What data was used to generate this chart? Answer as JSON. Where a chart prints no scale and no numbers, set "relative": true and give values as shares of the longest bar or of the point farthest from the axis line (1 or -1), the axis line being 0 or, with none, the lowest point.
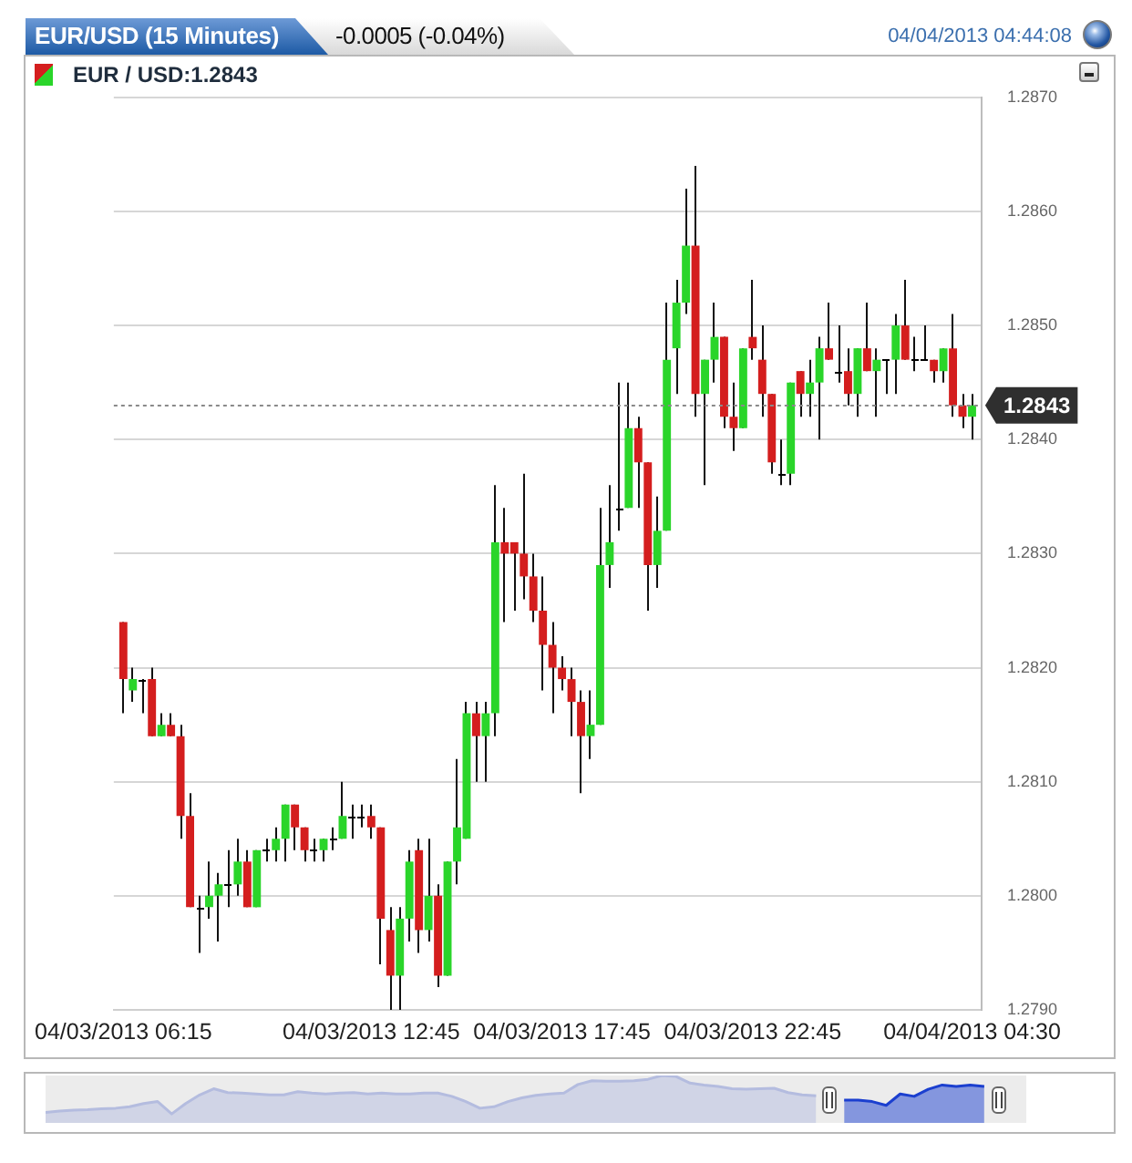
{
  "chart_data": [
    {
      "type": "candlestick",
      "title": "EUR/USD (15 Minutes)",
      "subtitle": "-0.0005 (-0.04%)",
      "annotations": [
        "04/04/2013 04:44:08"
      ],
      "x": [
        "2013-04-03T06:15",
        "2013-04-03T06:30",
        "2013-04-03T06:45",
        "2013-04-03T07:00",
        "2013-04-03T07:15",
        "2013-04-03T07:30",
        "2013-04-03T07:45",
        "2013-04-03T08:00",
        "2013-04-03T08:15",
        "2013-04-03T08:30",
        "2013-04-03T08:45",
        "2013-04-03T09:00",
        "2013-04-03T09:15",
        "2013-04-03T09:30",
        "2013-04-03T09:45",
        "2013-04-03T10:00",
        "2013-04-03T10:15",
        "2013-04-03T10:30",
        "2013-04-03T10:45",
        "2013-04-03T11:00",
        "2013-04-03T11:15",
        "2013-04-03T11:30",
        "2013-04-03T11:45",
        "2013-04-03T12:00",
        "2013-04-03T12:15",
        "2013-04-03T12:30",
        "2013-04-03T12:45",
        "2013-04-03T13:00",
        "2013-04-03T13:15",
        "2013-04-03T13:30",
        "2013-04-03T13:45",
        "2013-04-03T14:00",
        "2013-04-03T14:15",
        "2013-04-03T14:30",
        "2013-04-03T14:45",
        "2013-04-03T15:00",
        "2013-04-03T15:15",
        "2013-04-03T15:30",
        "2013-04-03T15:45",
        "2013-04-03T16:00",
        "2013-04-03T16:15",
        "2013-04-03T16:30",
        "2013-04-03T16:45",
        "2013-04-03T17:00",
        "2013-04-03T17:15",
        "2013-04-03T17:30",
        "2013-04-03T17:45",
        "2013-04-03T18:00",
        "2013-04-03T18:15",
        "2013-04-03T18:30",
        "2013-04-03T18:45",
        "2013-04-03T19:00",
        "2013-04-03T19:15",
        "2013-04-03T19:30",
        "2013-04-03T19:45",
        "2013-04-03T20:00",
        "2013-04-03T20:15",
        "2013-04-03T20:30",
        "2013-04-03T20:45",
        "2013-04-03T21:00",
        "2013-04-03T21:15",
        "2013-04-03T21:30",
        "2013-04-03T21:45",
        "2013-04-03T22:00",
        "2013-04-03T22:15",
        "2013-04-03T22:30",
        "2013-04-03T22:45",
        "2013-04-03T23:00",
        "2013-04-03T23:15",
        "2013-04-03T23:30",
        "2013-04-03T23:45",
        "2013-04-04T00:00",
        "2013-04-04T00:15",
        "2013-04-04T00:30",
        "2013-04-04T00:45",
        "2013-04-04T01:00",
        "2013-04-04T01:15",
        "2013-04-04T01:30",
        "2013-04-04T01:45",
        "2013-04-04T02:00",
        "2013-04-04T02:15",
        "2013-04-04T02:30",
        "2013-04-04T02:45",
        "2013-04-04T03:00",
        "2013-04-04T03:15",
        "2013-04-04T03:30",
        "2013-04-04T03:45",
        "2013-04-04T04:00",
        "2013-04-04T04:15",
        "2013-04-04T04:30"
      ],
      "series": [
        {
          "name": "EUR / USD:1.2843",
          "ohlc": [
            [
              1.2824,
              1.2824,
              1.2816,
              1.2819
            ],
            [
              1.2818,
              1.282,
              1.2817,
              1.2819
            ],
            [
              1.2819,
              1.2819,
              1.2816,
              1.2819
            ],
            [
              1.2819,
              1.282,
              1.2814,
              1.2814
            ],
            [
              1.2814,
              1.2816,
              1.2814,
              1.2815
            ],
            [
              1.2815,
              1.2816,
              1.2814,
              1.2814
            ],
            [
              1.2814,
              1.2815,
              1.2805,
              1.2807
            ],
            [
              1.2807,
              1.2809,
              1.2799,
              1.2799
            ],
            [
              1.2799,
              1.28,
              1.2795,
              1.2799
            ],
            [
              1.2799,
              1.2803,
              1.2798,
              1.28
            ],
            [
              1.28,
              1.2802,
              1.2796,
              1.2801
            ],
            [
              1.2801,
              1.2804,
              1.2799,
              1.2801
            ],
            [
              1.2801,
              1.2805,
              1.28,
              1.2803
            ],
            [
              1.2803,
              1.2804,
              1.2799,
              1.2799
            ],
            [
              1.2799,
              1.2804,
              1.2799,
              1.2804
            ],
            [
              1.2804,
              1.2805,
              1.2803,
              1.2804
            ],
            [
              1.2804,
              1.2806,
              1.2803,
              1.2805
            ],
            [
              1.2805,
              1.2808,
              1.2803,
              1.2808
            ],
            [
              1.2808,
              1.2808,
              1.2804,
              1.2806
            ],
            [
              1.2806,
              1.2806,
              1.2803,
              1.2804
            ],
            [
              1.2804,
              1.2805,
              1.2803,
              1.2804
            ],
            [
              1.2804,
              1.2805,
              1.2803,
              1.2805
            ],
            [
              1.2805,
              1.2806,
              1.2804,
              1.2805
            ],
            [
              1.2805,
              1.281,
              1.2805,
              1.2807
            ],
            [
              1.2807,
              1.2808,
              1.2805,
              1.2807
            ],
            [
              1.2807,
              1.2808,
              1.2806,
              1.2807
            ],
            [
              1.2807,
              1.2808,
              1.2805,
              1.2806
            ],
            [
              1.2806,
              1.2806,
              1.2794,
              1.2798
            ],
            [
              1.2797,
              1.2799,
              1.279,
              1.2793
            ],
            [
              1.2793,
              1.2799,
              1.279,
              1.2798
            ],
            [
              1.2798,
              1.2804,
              1.2796,
              1.2803
            ],
            [
              1.2804,
              1.2805,
              1.2795,
              1.2797
            ],
            [
              1.2797,
              1.2805,
              1.2796,
              1.28
            ],
            [
              1.28,
              1.2801,
              1.2792,
              1.2793
            ],
            [
              1.2793,
              1.2803,
              1.2793,
              1.2803
            ],
            [
              1.2803,
              1.2812,
              1.2801,
              1.2806
            ],
            [
              1.2805,
              1.2817,
              1.2805,
              1.2816
            ],
            [
              1.2816,
              1.2817,
              1.281,
              1.2814
            ],
            [
              1.2814,
              1.2817,
              1.281,
              1.2816
            ],
            [
              1.2816,
              1.2836,
              1.2814,
              1.2831
            ],
            [
              1.2831,
              1.2834,
              1.2824,
              1.283
            ],
            [
              1.2831,
              1.2831,
              1.2825,
              1.283
            ],
            [
              1.283,
              1.2837,
              1.2826,
              1.2828
            ],
            [
              1.2828,
              1.283,
              1.2824,
              1.2825
            ],
            [
              1.2825,
              1.2828,
              1.2818,
              1.2822
            ],
            [
              1.2822,
              1.2824,
              1.2816,
              1.282
            ],
            [
              1.282,
              1.2821,
              1.2818,
              1.2819
            ],
            [
              1.2819,
              1.282,
              1.2814,
              1.2817
            ],
            [
              1.2817,
              1.2818,
              1.2809,
              1.2814
            ],
            [
              1.2814,
              1.2818,
              1.2812,
              1.2815
            ],
            [
              1.2815,
              1.2834,
              1.2815,
              1.2829
            ],
            [
              1.2829,
              1.2836,
              1.2827,
              1.2831
            ],
            [
              1.2834,
              1.2845,
              1.2832,
              1.2834
            ],
            [
              1.2834,
              1.2845,
              1.2834,
              1.2841
            ],
            [
              1.2841,
              1.2842,
              1.2834,
              1.2838
            ],
            [
              1.2838,
              1.2838,
              1.2825,
              1.2829
            ],
            [
              1.2829,
              1.2835,
              1.2827,
              1.2832
            ],
            [
              1.2832,
              1.2852,
              1.2832,
              1.2847
            ],
            [
              1.2848,
              1.2854,
              1.2844,
              1.2852
            ],
            [
              1.2852,
              1.2862,
              1.2851,
              1.2857
            ],
            [
              1.2857,
              1.2864,
              1.2842,
              1.2844
            ],
            [
              1.2844,
              1.2847,
              1.2836,
              1.2847
            ],
            [
              1.2847,
              1.2852,
              1.2845,
              1.2849
            ],
            [
              1.2849,
              1.2849,
              1.2841,
              1.2842
            ],
            [
              1.2842,
              1.2845,
              1.2839,
              1.2841
            ],
            [
              1.2841,
              1.2848,
              1.2841,
              1.2848
            ],
            [
              1.2849,
              1.2854,
              1.2847,
              1.2848
            ],
            [
              1.2847,
              1.285,
              1.2842,
              1.2844
            ],
            [
              1.2844,
              1.2844,
              1.2837,
              1.2838
            ],
            [
              1.2837,
              1.284,
              1.2836,
              1.2837
            ],
            [
              1.2837,
              1.2845,
              1.2836,
              1.2845
            ],
            [
              1.2846,
              1.2846,
              1.2842,
              1.2844
            ],
            [
              1.2844,
              1.2847,
              1.2842,
              1.2845
            ],
            [
              1.2845,
              1.2849,
              1.284,
              1.2848
            ],
            [
              1.2848,
              1.2852,
              1.2847,
              1.2847
            ],
            [
              1.2846,
              1.285,
              1.2845,
              1.2846
            ],
            [
              1.2846,
              1.2848,
              1.2843,
              1.2844
            ],
            [
              1.2844,
              1.2848,
              1.2842,
              1.2848
            ],
            [
              1.2848,
              1.2852,
              1.2846,
              1.2846
            ],
            [
              1.2846,
              1.2848,
              1.2842,
              1.2847
            ],
            [
              1.2847,
              1.2847,
              1.2844,
              1.2847
            ],
            [
              1.2847,
              1.2851,
              1.2844,
              1.285
            ],
            [
              1.285,
              1.2854,
              1.2847,
              1.2847
            ],
            [
              1.2847,
              1.2849,
              1.2846,
              1.2847
            ],
            [
              1.2847,
              1.285,
              1.2847,
              1.2847
            ],
            [
              1.2847,
              1.2847,
              1.2845,
              1.2846
            ],
            [
              1.2846,
              1.2848,
              1.2845,
              1.2848
            ],
            [
              1.2848,
              1.2851,
              1.2842,
              1.2843
            ],
            [
              1.2843,
              1.2844,
              1.2841,
              1.2842
            ],
            [
              1.2842,
              1.2844,
              1.284,
              1.2843
            ]
          ],
          "colors": [
            "#d41e1e",
            "#2ad52a",
            "#000000",
            "#d41e1e",
            "#2ad52a",
            "#d41e1e",
            "#d41e1e",
            "#d41e1e",
            "#000000",
            "#2ad52a",
            "#2ad52a",
            "#000000",
            "#2ad52a",
            "#d41e1e",
            "#2ad52a",
            "#000000",
            "#2ad52a",
            "#2ad52a",
            "#d41e1e",
            "#d41e1e",
            "#000000",
            "#2ad52a",
            "#000000",
            "#2ad52a",
            "#000000",
            "#000000",
            "#d41e1e",
            "#d41e1e",
            "#d41e1e",
            "#2ad52a",
            "#2ad52a",
            "#d41e1e",
            "#2ad52a",
            "#d41e1e",
            "#2ad52a",
            "#2ad52a",
            "#2ad52a",
            "#d41e1e",
            "#2ad52a",
            "#2ad52a",
            "#d41e1e",
            "#d41e1e",
            "#d41e1e",
            "#d41e1e",
            "#d41e1e",
            "#d41e1e",
            "#d41e1e",
            "#d41e1e",
            "#d41e1e",
            "#2ad52a",
            "#2ad52a",
            "#2ad52a",
            "#000000",
            "#2ad52a",
            "#d41e1e",
            "#d41e1e",
            "#2ad52a",
            "#2ad52a",
            "#2ad52a",
            "#2ad52a",
            "#d41e1e",
            "#2ad52a",
            "#2ad52a",
            "#d41e1e",
            "#d41e1e",
            "#2ad52a",
            "#d41e1e",
            "#d41e1e",
            "#d41e1e",
            "#000000",
            "#2ad52a",
            "#d41e1e",
            "#2ad52a",
            "#2ad52a",
            "#d41e1e",
            "#000000",
            "#d41e1e",
            "#2ad52a",
            "#d41e1e",
            "#2ad52a",
            "#000000",
            "#2ad52a",
            "#d41e1e",
            "#000000",
            "#000000",
            "#d41e1e",
            "#2ad52a",
            "#d41e1e",
            "#d41e1e",
            "#2ad52a"
          ]
        }
      ],
      "xlim": [
        "2013-04-03T06:00",
        "2013-04-04T04:45"
      ],
      "xticks": [
        {
          "value": "2013-04-03T06:15",
          "label": "04/03/2013 06:15"
        },
        {
          "value": "2013-04-03T12:45",
          "label": "04/03/2013 12:45"
        },
        {
          "value": "2013-04-03T17:45",
          "label": "04/03/2013 17:45"
        },
        {
          "value": "2013-04-03T22:45",
          "label": "04/03/2013 22:45"
        },
        {
          "value": "2013-04-04T04:30",
          "label": "04/04/2013 04:30"
        }
      ],
      "ylim": [
        1.279,
        1.287
      ],
      "yticks": [
        {
          "value": 1.279,
          "label": "1.2790"
        },
        {
          "value": 1.28,
          "label": "1.2800"
        },
        {
          "value": 1.281,
          "label": "1.2810"
        },
        {
          "value": 1.282,
          "label": "1.2820"
        },
        {
          "value": 1.283,
          "label": "1.2830"
        },
        {
          "value": 1.284,
          "label": "1.2840"
        },
        {
          "value": 1.285,
          "label": "1.2850"
        },
        {
          "value": 1.286,
          "label": "1.2860"
        },
        {
          "value": 1.287,
          "label": "1.2870"
        }
      ],
      "ref_lines": [
        {
          "axis": "y",
          "value": 1.2843,
          "label": "1.2843",
          "line_style": "dotted",
          "color": "#8a8a8a"
        }
      ],
      "grid": "y",
      "legend": "top left"
    },
    {
      "type": "area",
      "relative": true,
      "categories": [
        null,
        null,
        null,
        null,
        null,
        null,
        null,
        null,
        null,
        null,
        null,
        null,
        null,
        null,
        null,
        null,
        null,
        null,
        null,
        null,
        null,
        null,
        null,
        null,
        null,
        null,
        null,
        null,
        null,
        null,
        null,
        null,
        null,
        null,
        null,
        null,
        null,
        null,
        null,
        null,
        null,
        null,
        null,
        null,
        null,
        null,
        null,
        null,
        null,
        null,
        null,
        null,
        null,
        null,
        null,
        null,
        null,
        null,
        null,
        null,
        null,
        null,
        null,
        null,
        null,
        null,
        null,
        null,
        null,
        null,
        null
      ],
      "series": [
        {
          "color": "#b4bcdf",
          "values": [
            0.22,
            0.25,
            0.27,
            0.28,
            0.3,
            0.31,
            0.34,
            0.41,
            0.45,
            0.19,
            0.41,
            0.59,
            0.72,
            0.64,
            0.63,
            0.61,
            0.59,
            0.59,
            0.66,
            0.63,
            0.61,
            0.63,
            0.64,
            0.61,
            0.63,
            0.61,
            0.61,
            0.63,
            0.63,
            0.56,
            0.45,
            0.31,
            0.34,
            0.45,
            0.53,
            0.58,
            0.61,
            0.63,
            0.81,
            0.89,
            0.88,
            0.88,
            0.89,
            0.92,
            1,
            0.98,
            0.84,
            0.8,
            0.77,
            0.72,
            0.71,
            0.72,
            0.73,
            0.64,
            0.59,
            0.57,
            null,
            null,
            null,
            null,
            null,
            null,
            null,
            null,
            null,
            null,
            null,
            null,
            null,
            null,
            null
          ]
        },
        {
          "color": "#1b3fcf",
          "values": [
            null,
            null,
            null,
            null,
            null,
            null,
            null,
            null,
            null,
            null,
            null,
            null,
            null,
            null,
            null,
            null,
            null,
            null,
            null,
            null,
            null,
            null,
            null,
            null,
            null,
            null,
            null,
            null,
            null,
            null,
            null,
            null,
            null,
            null,
            null,
            null,
            null,
            null,
            null,
            null,
            null,
            null,
            null,
            null,
            null,
            null,
            null,
            null,
            null,
            null,
            null,
            null,
            null,
            null,
            null,
            null,
            null,
            0.48,
            0.48,
            0.45,
            0.37,
            0.61,
            0.56,
            0.71,
            0.8,
            0.77,
            0.8,
            0.77,
            null,
            null,
            null
          ]
        }
      ]
    }
  ]
}
